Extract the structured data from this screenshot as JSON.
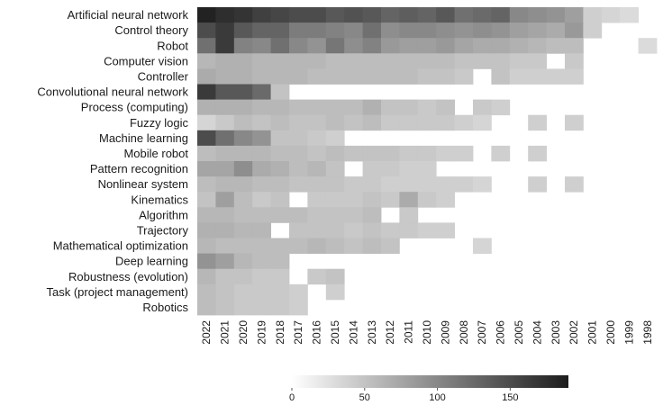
{
  "chart_data": {
    "type": "heatmap",
    "title": "",
    "xlabel": "",
    "ylabel": "",
    "x": [
      "2022",
      "2021",
      "2020",
      "2019",
      "2018",
      "2017",
      "2016",
      "2015",
      "2014",
      "2013",
      "2012",
      "2011",
      "2010",
      "2009",
      "2008",
      "2007",
      "2006",
      "2005",
      "2004",
      "2003",
      "2002",
      "2001",
      "2000",
      "1999",
      "1998"
    ],
    "y": [
      "Artificial neural network",
      "Control theory",
      "Robot",
      "Computer vision",
      "Controller",
      "Convolutional neural network",
      "Process (computing)",
      "Fuzzy logic",
      "Machine learning",
      "Mobile robot",
      "Pattern recognition",
      "Nonlinear system",
      "Kinematics",
      "Algorithm",
      "Trajectory",
      "Mathematical optimization",
      "Deep learning",
      "Robustness (evolution)",
      "Task (project management)",
      "Robotics"
    ],
    "values": [
      [
        185,
        175,
        170,
        160,
        155,
        150,
        150,
        140,
        145,
        140,
        130,
        135,
        130,
        140,
        120,
        125,
        130,
        100,
        95,
        90,
        80,
        40,
        35,
        30,
        null
      ],
      [
        150,
        165,
        140,
        130,
        130,
        110,
        110,
        105,
        100,
        120,
        95,
        100,
        100,
        95,
        90,
        95,
        90,
        80,
        75,
        70,
        85,
        40,
        null,
        null,
        null
      ],
      [
        120,
        165,
        105,
        100,
        120,
        100,
        90,
        115,
        95,
        105,
        85,
        80,
        80,
        85,
        75,
        70,
        70,
        65,
        60,
        55,
        55,
        null,
        null,
        null,
        30
      ],
      [
        60,
        65,
        65,
        60,
        60,
        60,
        60,
        55,
        55,
        55,
        55,
        55,
        55,
        55,
        50,
        50,
        50,
        45,
        45,
        null,
        45,
        null,
        null,
        null,
        null
      ],
      [
        70,
        65,
        65,
        60,
        60,
        60,
        55,
        55,
        55,
        55,
        55,
        55,
        50,
        50,
        45,
        null,
        50,
        40,
        40,
        40,
        40,
        null,
        null,
        null,
        null
      ],
      [
        165,
        140,
        140,
        125,
        50,
        null,
        null,
        null,
        null,
        null,
        null,
        null,
        null,
        null,
        null,
        null,
        null,
        null,
        null,
        null,
        null,
        null,
        null,
        null,
        null
      ],
      [
        65,
        65,
        65,
        60,
        60,
        55,
        55,
        55,
        55,
        65,
        50,
        50,
        45,
        50,
        null,
        45,
        40,
        null,
        null,
        null,
        null,
        null,
        null,
        null,
        null
      ],
      [
        35,
        45,
        55,
        50,
        55,
        50,
        50,
        55,
        50,
        55,
        45,
        45,
        45,
        45,
        40,
        35,
        null,
        null,
        40,
        null,
        40,
        null,
        null,
        null,
        null
      ],
      [
        150,
        120,
        100,
        90,
        50,
        50,
        45,
        40,
        null,
        null,
        null,
        null,
        null,
        null,
        null,
        null,
        null,
        null,
        null,
        null,
        null,
        null,
        null,
        null,
        null
      ],
      [
        55,
        60,
        60,
        60,
        55,
        55,
        50,
        55,
        50,
        50,
        50,
        45,
        45,
        40,
        40,
        null,
        40,
        null,
        40,
        null,
        null,
        null,
        null,
        null,
        null
      ],
      [
        75,
        75,
        95,
        70,
        65,
        55,
        60,
        50,
        null,
        45,
        45,
        40,
        40,
        null,
        null,
        null,
        null,
        null,
        null,
        null,
        null,
        null,
        null,
        null,
        null
      ],
      [
        55,
        60,
        60,
        55,
        55,
        50,
        50,
        50,
        45,
        45,
        40,
        40,
        40,
        40,
        40,
        35,
        null,
        null,
        40,
        null,
        40,
        null,
        null,
        null,
        null
      ],
      [
        50,
        80,
        55,
        45,
        50,
        null,
        45,
        45,
        45,
        50,
        45,
        70,
        45,
        40,
        null,
        null,
        null,
        null,
        null,
        null,
        null,
        null,
        null,
        null,
        null
      ],
      [
        60,
        60,
        55,
        55,
        55,
        55,
        50,
        50,
        50,
        55,
        null,
        45,
        null,
        null,
        null,
        null,
        null,
        null,
        null,
        null,
        null,
        null,
        null,
        null,
        null
      ],
      [
        65,
        65,
        60,
        60,
        null,
        50,
        50,
        50,
        45,
        50,
        45,
        45,
        40,
        40,
        null,
        null,
        null,
        null,
        null,
        null,
        null,
        null,
        null,
        null,
        null
      ],
      [
        60,
        55,
        55,
        55,
        55,
        55,
        60,
        55,
        50,
        55,
        50,
        null,
        null,
        null,
        null,
        35,
        null,
        null,
        null,
        null,
        null,
        null,
        null,
        null,
        null
      ],
      [
        90,
        80,
        60,
        55,
        55,
        null,
        null,
        null,
        null,
        null,
        null,
        null,
        null,
        null,
        null,
        null,
        null,
        null,
        null,
        null,
        null,
        null,
        null,
        null,
        null
      ],
      [
        60,
        50,
        50,
        45,
        45,
        null,
        45,
        50,
        null,
        null,
        null,
        null,
        null,
        null,
        null,
        null,
        null,
        null,
        null,
        null,
        null,
        null,
        null,
        null,
        null
      ],
      [
        55,
        50,
        45,
        45,
        45,
        40,
        null,
        40,
        null,
        null,
        null,
        null,
        null,
        null,
        null,
        null,
        null,
        null,
        null,
        null,
        null,
        null,
        null,
        null,
        null
      ],
      [
        55,
        50,
        45,
        45,
        45,
        40,
        null,
        null,
        null,
        null,
        null,
        null,
        null,
        null,
        null,
        null,
        null,
        null,
        null,
        null,
        null,
        null,
        null,
        null,
        null
      ]
    ],
    "colorbar": {
      "min": 0,
      "max": 190,
      "ticks": [
        0,
        50,
        100,
        150
      ],
      "color_low": "#ffffff",
      "color_high": "#1c1c1c"
    },
    "legend_placement": "bottom"
  }
}
